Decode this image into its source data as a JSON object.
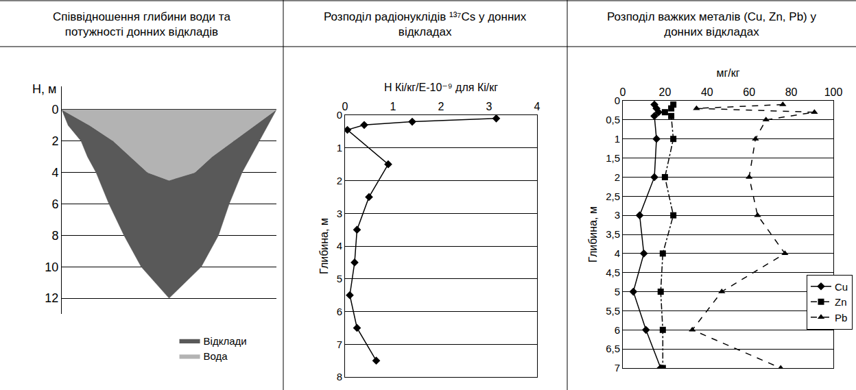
{
  "chart_data": [
    {
      "type": "area",
      "title": "Співвідношення глибини води та потужності донних відкладів",
      "y_label": "H, м",
      "xlim": [
        0,
        1
      ],
      "ylim": [
        13,
        -1.5
      ],
      "yticks": [
        0,
        2,
        4,
        6,
        8,
        10,
        12
      ],
      "grid": "y",
      "tick_labels": "y",
      "legend": "below right",
      "series": [
        {
          "name": "Відклади",
          "color": "#595959",
          "x": [
            0,
            0.03,
            0.09,
            0.12,
            0.16,
            0.22,
            0.29,
            0.37,
            0.5,
            0.65,
            0.73,
            0.78,
            0.84,
            0.92,
            1,
            0.9,
            0.8,
            0.7,
            0.62,
            0.5,
            0.4,
            0.32,
            0.24,
            0.13,
            0
          ],
          "y": [
            0,
            1,
            2,
            3,
            4,
            6,
            8,
            10,
            12,
            10,
            8,
            6,
            4,
            2,
            0,
            1,
            2,
            3,
            4,
            4.5,
            4,
            3,
            2,
            1,
            0
          ]
        },
        {
          "name": "Вода",
          "color": "#b3b3b3",
          "x": [
            0,
            0.13,
            0.24,
            0.32,
            0.4,
            0.5,
            0.62,
            0.7,
            0.8,
            0.9,
            1,
            0
          ],
          "y": [
            0,
            1,
            2,
            3,
            4,
            4.5,
            4,
            3,
            2,
            1,
            0,
            0
          ]
        }
      ]
    },
    {
      "type": "line",
      "title": "Розподіл радіонуклідів ¹³⁷Cs у донних відкладах",
      "x_label": "Н Кі/кг/E-10⁻⁹ для Кі/кг",
      "y_label": "Глибина, м",
      "xlim": [
        0,
        4
      ],
      "xticks": [
        0,
        1,
        2,
        3,
        4
      ],
      "ylim": [
        8,
        0
      ],
      "yticks": [
        0,
        1,
        2,
        3,
        4,
        5,
        6,
        7,
        8
      ],
      "grid": "y",
      "series": [
        {
          "color": "#000000",
          "marker": "diamond",
          "line_style": "solid",
          "x": [
            3.15,
            1.4,
            0.4,
            0.05,
            0.9,
            0.5,
            0.25,
            0.2,
            0.1,
            0.25,
            0.65
          ],
          "y": [
            0.1,
            0.2,
            0.3,
            0.45,
            1.5,
            2.5,
            3.5,
            4.5,
            5.5,
            6.5,
            7.5
          ]
        }
      ]
    },
    {
      "type": "line",
      "title": "Розподіл важких металів (Cu, Zn, Pb) у донних відкладах",
      "x_label": "мг/кг",
      "y_label": "Глибина, м",
      "xlim": [
        0,
        100
      ],
      "xticks": [
        0,
        20,
        40,
        60,
        80,
        100
      ],
      "ylim": [
        7,
        0
      ],
      "yticks": [
        0,
        {
          "value": 0.5,
          "label": "0,5"
        },
        1,
        {
          "value": 1.5,
          "label": "1,5"
        },
        2,
        {
          "value": 2.5,
          "label": "2,5"
        },
        3,
        {
          "value": 3.5,
          "label": "3,5"
        },
        4,
        {
          "value": 4.5,
          "label": "4,5"
        },
        5,
        {
          "value": 5.5,
          "label": "5,5"
        },
        6,
        {
          "value": 6.5,
          "label": "6,5"
        },
        7
      ],
      "grid": "y",
      "legend": "lower right",
      "series": [
        {
          "name": "Cu",
          "color": "#000000",
          "marker": "diamond",
          "line_style": "solid",
          "x": [
            15,
            16,
            17,
            15,
            16,
            15,
            8,
            10,
            5,
            11,
            18
          ],
          "y": [
            0.1,
            0.2,
            0.3,
            0.4,
            1,
            2,
            3,
            4,
            5,
            6,
            7
          ]
        },
        {
          "name": "Zn",
          "color": "#000000",
          "marker": "square",
          "line_style": "dashdot",
          "x": [
            24,
            23,
            20,
            23,
            24,
            20,
            24,
            19,
            18,
            19,
            19
          ],
          "y": [
            0.1,
            0.2,
            0.3,
            0.4,
            1,
            2,
            3,
            4,
            5,
            6,
            7
          ]
        },
        {
          "name": "Pb",
          "color": "#000000",
          "marker": "triangle",
          "line_style": "dash",
          "x": [
            76,
            35,
            91,
            68,
            63,
            60,
            64,
            77,
            47,
            33,
            75
          ],
          "y": [
            0.1,
            0.2,
            0.3,
            0.5,
            1,
            2,
            3,
            4,
            5,
            6,
            7
          ]
        }
      ]
    }
  ]
}
